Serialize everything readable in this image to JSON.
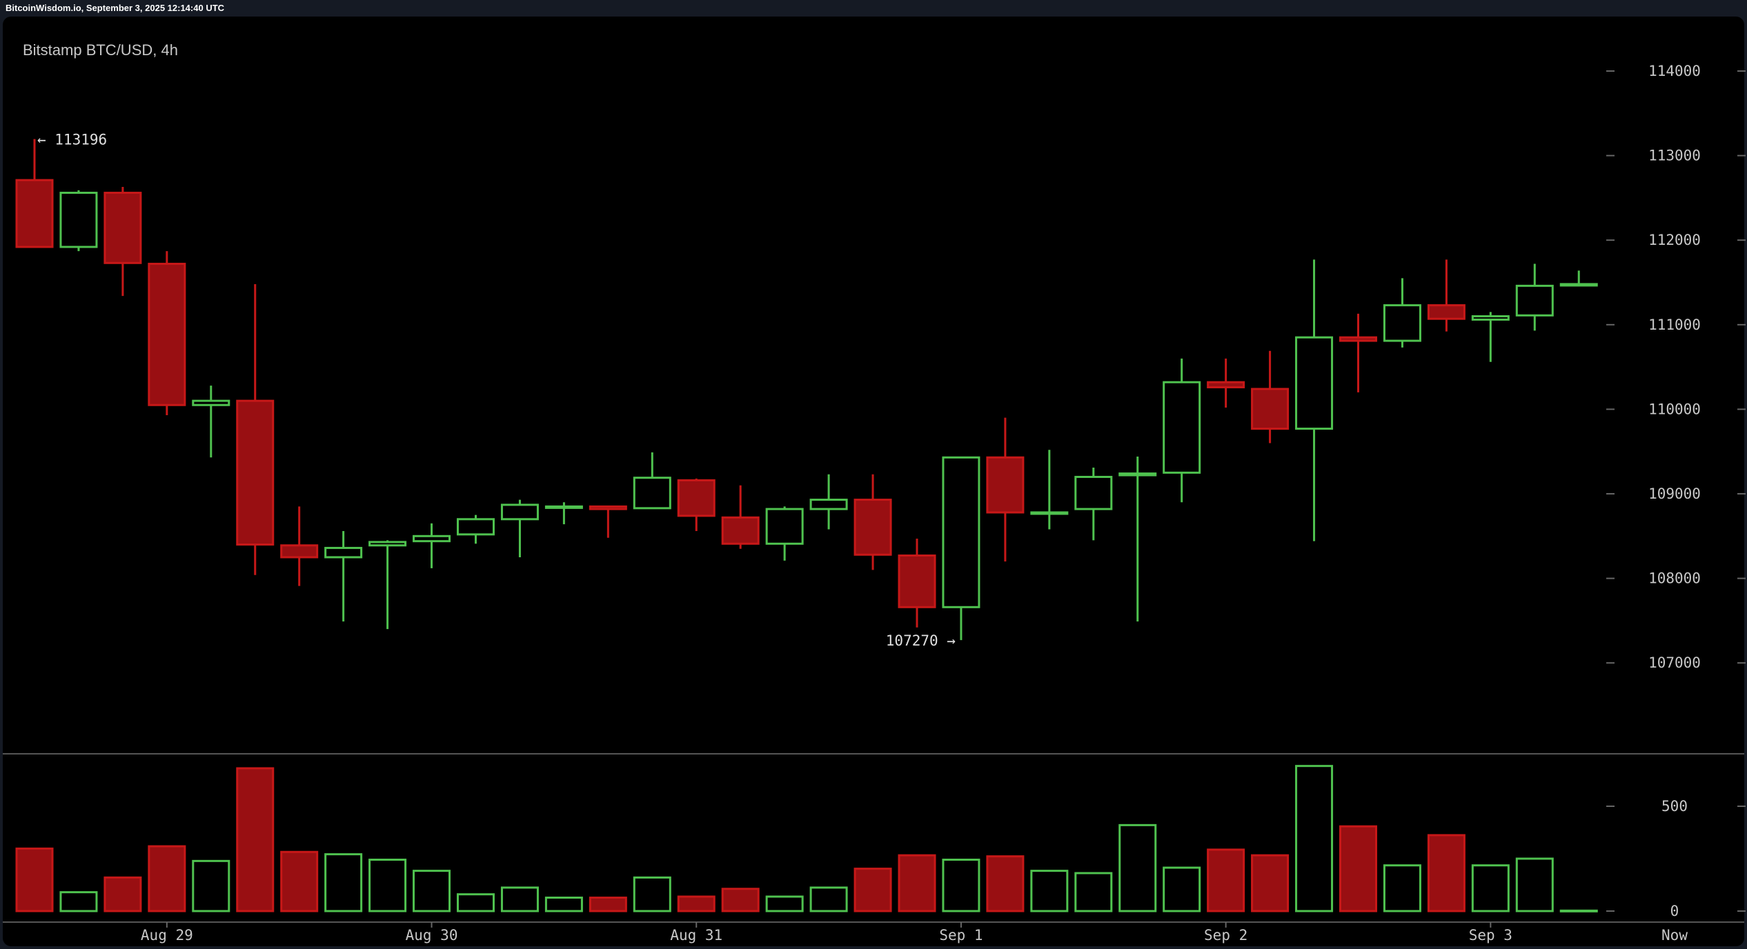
{
  "header": {
    "source_line": "BitcoinWisdom.io, September 3, 2025 12:14:40 UTC"
  },
  "chart_data": {
    "type": "candlestick",
    "title": "Bitstamp BTC/USD, 4h",
    "colors": {
      "up": "#4fc24f",
      "down": "#c71818",
      "down_fill": "#990f12",
      "background": "#000000"
    },
    "price_axis": {
      "ticks": [
        107000,
        108000,
        109000,
        110000,
        111000,
        112000,
        113000,
        114000
      ],
      "range": [
        106250,
        114000
      ]
    },
    "volume_axis": {
      "ticks": [
        0,
        500
      ]
    },
    "x_labels": [
      {
        "label": "Aug 29",
        "candle": 4
      },
      {
        "label": "Aug 30",
        "candle": 10
      },
      {
        "label": "Aug 31",
        "candle": 16
      },
      {
        "label": "Sep 1",
        "candle": 22
      },
      {
        "label": "Sep 2",
        "candle": 28
      },
      {
        "label": "Sep 3",
        "candle": 34
      }
    ],
    "now_label": "Now",
    "annotations": {
      "high": "← 113196",
      "low": "107270 →"
    },
    "candles": [
      {
        "o": 112710,
        "h": 113196,
        "l": 111920,
        "c": 111920,
        "v": 298
      },
      {
        "o": 111920,
        "h": 112590,
        "l": 111870,
        "c": 112560,
        "v": 90
      },
      {
        "o": 112560,
        "h": 112630,
        "l": 111340,
        "c": 111730,
        "v": 160
      },
      {
        "o": 111720,
        "h": 111870,
        "l": 109930,
        "c": 110050,
        "v": 309
      },
      {
        "o": 110050,
        "h": 110280,
        "l": 109430,
        "c": 110100,
        "v": 239
      },
      {
        "o": 110100,
        "h": 111480,
        "l": 108040,
        "c": 108400,
        "v": 681
      },
      {
        "o": 108390,
        "h": 108850,
        "l": 107910,
        "c": 108250,
        "v": 282
      },
      {
        "o": 108250,
        "h": 108560,
        "l": 107490,
        "c": 108360,
        "v": 271
      },
      {
        "o": 108390,
        "h": 108450,
        "l": 107400,
        "c": 108430,
        "v": 245
      },
      {
        "o": 108440,
        "h": 108650,
        "l": 108120,
        "c": 108500,
        "v": 192
      },
      {
        "o": 108520,
        "h": 108750,
        "l": 108410,
        "c": 108700,
        "v": 80
      },
      {
        "o": 108700,
        "h": 108930,
        "l": 108250,
        "c": 108870,
        "v": 112
      },
      {
        "o": 108840,
        "h": 108900,
        "l": 108640,
        "c": 108850,
        "v": 64
      },
      {
        "o": 108850,
        "h": 108850,
        "l": 108480,
        "c": 108820,
        "v": 64
      },
      {
        "o": 108830,
        "h": 109490,
        "l": 108830,
        "c": 109190,
        "v": 160
      },
      {
        "o": 109160,
        "h": 109180,
        "l": 108560,
        "c": 108740,
        "v": 69
      },
      {
        "o": 108720,
        "h": 109100,
        "l": 108350,
        "c": 108410,
        "v": 106
      },
      {
        "o": 108410,
        "h": 108850,
        "l": 108210,
        "c": 108820,
        "v": 69
      },
      {
        "o": 108820,
        "h": 109230,
        "l": 108580,
        "c": 108930,
        "v": 112
      },
      {
        "o": 108930,
        "h": 109230,
        "l": 108100,
        "c": 108280,
        "v": 202
      },
      {
        "o": 108270,
        "h": 108470,
        "l": 107420,
        "c": 107660,
        "v": 266
      },
      {
        "o": 107660,
        "h": 109430,
        "l": 107270,
        "c": 109430,
        "v": 245
      },
      {
        "o": 109430,
        "h": 109900,
        "l": 108200,
        "c": 108780,
        "v": 261
      },
      {
        "o": 108770,
        "h": 109520,
        "l": 108580,
        "c": 108780,
        "v": 192
      },
      {
        "o": 108820,
        "h": 109310,
        "l": 108450,
        "c": 109200,
        "v": 181
      },
      {
        "o": 109220,
        "h": 109440,
        "l": 107490,
        "c": 109240,
        "v": 410
      },
      {
        "o": 109250,
        "h": 110600,
        "l": 108900,
        "c": 110320,
        "v": 207
      },
      {
        "o": 110320,
        "h": 110600,
        "l": 110020,
        "c": 110260,
        "v": 293
      },
      {
        "o": 110240,
        "h": 110690,
        "l": 109600,
        "c": 109770,
        "v": 266
      },
      {
        "o": 109770,
        "h": 111770,
        "l": 108440,
        "c": 110850,
        "v": 692
      },
      {
        "o": 110850,
        "h": 111130,
        "l": 110200,
        "c": 110810,
        "v": 404
      },
      {
        "o": 110810,
        "h": 111550,
        "l": 110730,
        "c": 111230,
        "v": 218
      },
      {
        "o": 111230,
        "h": 111770,
        "l": 110920,
        "c": 111070,
        "v": 362
      },
      {
        "o": 111060,
        "h": 111150,
        "l": 110560,
        "c": 111100,
        "v": 218
      },
      {
        "o": 111110,
        "h": 111720,
        "l": 110930,
        "c": 111460,
        "v": 250
      },
      {
        "o": 111470,
        "h": 111640,
        "l": 111470,
        "c": 111480,
        "v": 2
      }
    ]
  }
}
